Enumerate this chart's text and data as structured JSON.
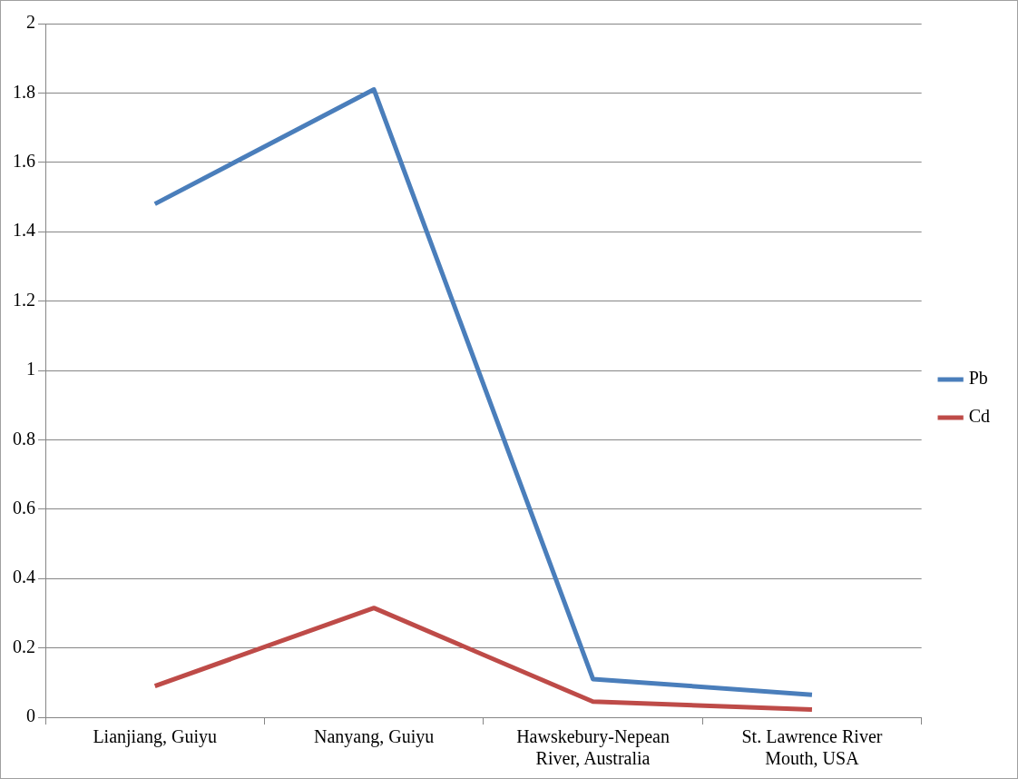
{
  "chart_data": {
    "type": "line",
    "categories": [
      "Lianjiang, Guiyu",
      "Nanyang, Guiyu",
      "Hawskebury-Nepean River, Australia",
      "St. Lawrence River Mouth, USA"
    ],
    "series": [
      {
        "name": "Pb",
        "color": "#4a7ebb",
        "values": [
          1.48,
          1.81,
          0.11,
          0.065
        ]
      },
      {
        "name": "Cd",
        "color": "#be4b48",
        "values": [
          0.09,
          0.315,
          0.045,
          0.022
        ]
      }
    ],
    "ylim": [
      0,
      2
    ],
    "yticks": [
      0,
      {
        "value": 0.2,
        "label": "0.2"
      },
      {
        "value": 0.4,
        "label": "0.4"
      },
      {
        "value": 0.6,
        "label": "0.6"
      },
      {
        "value": 0.8,
        "label": "0.8"
      },
      1,
      {
        "value": 1.2,
        "label": "1.2"
      },
      {
        "value": 1.4,
        "label": "1.4"
      },
      {
        "value": 1.6,
        "label": "1.6"
      },
      {
        "value": 1.8,
        "label": "1.8"
      },
      2
    ],
    "grid": "y",
    "legend": "right",
    "marker": "none",
    "line_style": "solid"
  }
}
